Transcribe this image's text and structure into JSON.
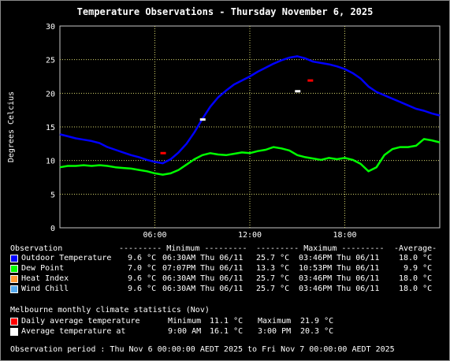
{
  "chart_data": {
    "type": "line",
    "title": "Temperature Observations - Thursday November 6, 2025",
    "ylabel": "Degrees Celcius",
    "ylim": [
      0,
      30
    ],
    "yticks": [
      "0",
      "5",
      "10",
      "15",
      "20",
      "25",
      "30"
    ],
    "xlim": [
      "00:00",
      "24:00"
    ],
    "xticks": [
      "06:00",
      "12:00",
      "18:00"
    ],
    "grid": true,
    "series": [
      {
        "name": "Outdoor Temperature",
        "color": "#0000ff",
        "x_hours": [
          0,
          0.5,
          1,
          1.5,
          2,
          2.5,
          3,
          3.5,
          4,
          4.5,
          5,
          5.5,
          6,
          6.5,
          7,
          7.5,
          8,
          8.5,
          9,
          9.5,
          10,
          10.5,
          11,
          11.5,
          12,
          12.5,
          13,
          13.5,
          14,
          14.5,
          15,
          15.5,
          16,
          16.5,
          17,
          17.5,
          18,
          18.5,
          19,
          19.5,
          20,
          20.5,
          21,
          21.5,
          22,
          22.5,
          23,
          23.5,
          24
        ],
        "values": [
          13.9,
          13.6,
          13.3,
          13.1,
          12.9,
          12.6,
          12.0,
          11.6,
          11.2,
          10.8,
          10.5,
          10.1,
          9.8,
          9.6,
          10.2,
          11.2,
          12.5,
          14.2,
          16.2,
          18.0,
          19.4,
          20.4,
          21.3,
          21.9,
          22.5,
          23.2,
          23.8,
          24.4,
          24.9,
          25.3,
          25.5,
          25.2,
          24.7,
          24.5,
          24.3,
          24.0,
          23.6,
          23.0,
          22.2,
          21.0,
          20.2,
          19.7,
          19.2,
          18.7,
          18.2,
          17.7,
          17.4,
          17.0,
          16.7
        ]
      },
      {
        "name": "Dew Point",
        "color": "#00ff00",
        "x_hours": [
          0,
          0.5,
          1,
          1.5,
          2,
          2.5,
          3,
          3.5,
          4,
          4.5,
          5,
          5.5,
          6,
          6.5,
          7,
          7.5,
          8,
          8.5,
          9,
          9.5,
          10,
          10.5,
          11,
          11.5,
          12,
          12.5,
          13,
          13.5,
          14,
          14.5,
          15,
          15.5,
          16,
          16.5,
          17,
          17.5,
          18,
          18.5,
          19,
          19.5,
          20,
          20.5,
          21,
          21.5,
          22,
          22.5,
          23,
          23.5,
          24
        ],
        "values": [
          9.0,
          9.2,
          9.2,
          9.3,
          9.2,
          9.3,
          9.2,
          9.0,
          8.9,
          8.8,
          8.6,
          8.4,
          8.1,
          7.9,
          8.1,
          8.6,
          9.4,
          10.2,
          10.8,
          11.1,
          10.9,
          10.8,
          11.0,
          11.2,
          11.1,
          11.4,
          11.6,
          12.0,
          11.8,
          11.5,
          10.8,
          10.5,
          10.3,
          10.1,
          10.4,
          10.2,
          10.4,
          10.1,
          9.5,
          8.4,
          9.0,
          10.8,
          11.7,
          12.0,
          12.0,
          12.2,
          13.2,
          13.0,
          12.7
        ]
      },
      {
        "name": "Heat Index",
        "color": "#ff9933"
      },
      {
        "name": "Wind Chill",
        "color": "#55aaee"
      }
    ],
    "markers": [
      {
        "name": "Daily average temperature Minimum",
        "color": "#ff0000",
        "x_hours": 6.5,
        "y": 11.1
      },
      {
        "name": "Daily average temperature Maximum",
        "color": "#ff0000",
        "x_hours": 15.8,
        "y": 21.9
      },
      {
        "name": "Average temperature at 9:00 AM",
        "color": "#ffffff",
        "x_hours": 9.0,
        "y": 16.1
      },
      {
        "name": "Average temperature at 3:00 PM",
        "color": "#ffffff",
        "x_hours": 15.0,
        "y": 20.3
      }
    ]
  },
  "legend": {
    "header": {
      "observation": "Observation",
      "minimum": "--------- Minimum ---------",
      "maximum": "--------- Maximum ---------",
      "average": "-Average-"
    },
    "rows": [
      {
        "name": "Outdoor Temperature",
        "color": "#0000ff",
        "min_val": " 9.6 °C",
        "min_time": "06:30AM Thu 06/11",
        "max_val": "25.7 °C",
        "max_time": "03:46PM Thu 06/11",
        "avg": "18.0 °C"
      },
      {
        "name": "Dew Point",
        "color": "#00ff00",
        "min_val": " 7.0 °C",
        "min_time": "07:07PM Thu 06/11",
        "max_val": "13.3 °C",
        "max_time": "10:53PM Thu 06/11",
        "avg": " 9.9 °C"
      },
      {
        "name": "Heat Index",
        "color": "#ff9933",
        "min_val": " 9.6 °C",
        "min_time": "06:30AM Thu 06/11",
        "max_val": "25.7 °C",
        "max_time": "03:46PM Thu 06/11",
        "avg": "18.0 °C"
      },
      {
        "name": "Wind Chill",
        "color": "#55aaee",
        "min_val": " 9.6 °C",
        "min_time": "06:30AM Thu 06/11",
        "max_val": "25.7 °C",
        "max_time": "03:46PM Thu 06/11",
        "avg": "18.0 °C"
      }
    ]
  },
  "climate": {
    "title": "Melbourne monthly climate statistics (Nov)",
    "rows": [
      {
        "label": "Daily average temperature",
        "color": "#ff0000",
        "left_label": "Minimum",
        "left_val": "11.1 °C",
        "right_label": "Maximum",
        "right_val": "21.9 °C"
      },
      {
        "label": "Average temperature at",
        "color": "#ffffff",
        "left_label": "9:00 AM",
        "left_val": "16.1 °C",
        "right_label": "3:00 PM",
        "right_val": "20.3 °C"
      }
    ]
  },
  "footer": "Observation period : Thu Nov 6 00:00:00 AEDT 2025 to Fri Nov 7 00:00:00 AEDT 2025"
}
